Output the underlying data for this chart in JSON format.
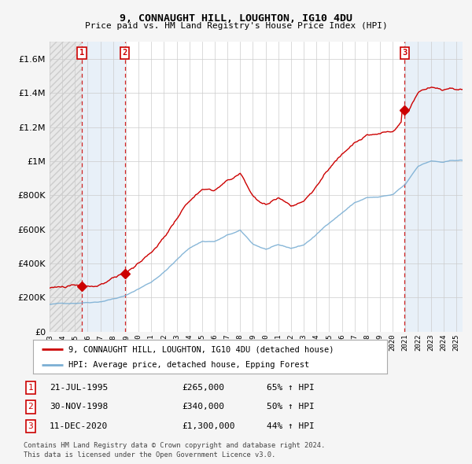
{
  "title": "9, CONNAUGHT HILL, LOUGHTON, IG10 4DU",
  "subtitle": "Price paid vs. HM Land Registry's House Price Index (HPI)",
  "legend_line1": "9, CONNAUGHT HILL, LOUGHTON, IG10 4DU (detached house)",
  "legend_line2": "HPI: Average price, detached house, Epping Forest",
  "footnote1": "Contains HM Land Registry data © Crown copyright and database right 2024.",
  "footnote2": "This data is licensed under the Open Government Licence v3.0.",
  "sale_color": "#cc0000",
  "hpi_color": "#7bafd4",
  "hpi_fill_color": "#ddeeff",
  "background_color": "#f5f5f5",
  "plot_bg_color": "#ffffff",
  "grid_color": "#cccccc",
  "transactions": [
    {
      "num": 1,
      "date": "21-JUL-1995",
      "x": 1995.55,
      "price": 265000,
      "pct": "65%",
      "dir": "↑"
    },
    {
      "num": 2,
      "date": "30-NOV-1998",
      "x": 1998.92,
      "price": 340000,
      "pct": "50%",
      "dir": "↑"
    },
    {
      "num": 3,
      "date": "11-DEC-2020",
      "x": 2020.95,
      "price": 1300000,
      "pct": "44%",
      "dir": "↑"
    }
  ],
  "xlim": [
    1993.0,
    2025.5
  ],
  "ylim": [
    0,
    1700000
  ],
  "yticks": [
    0,
    200000,
    400000,
    600000,
    800000,
    1000000,
    1200000,
    1400000,
    1600000
  ],
  "xtick_years": [
    1993,
    1994,
    1995,
    1996,
    1997,
    1998,
    1999,
    2000,
    2001,
    2002,
    2003,
    2004,
    2005,
    2006,
    2007,
    2008,
    2009,
    2010,
    2011,
    2012,
    2013,
    2014,
    2015,
    2016,
    2017,
    2018,
    2019,
    2020,
    2021,
    2022,
    2023,
    2024,
    2025
  ]
}
